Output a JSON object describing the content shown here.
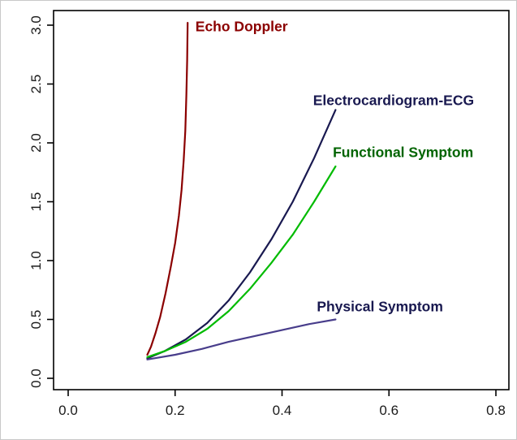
{
  "chart_data": {
    "type": "line",
    "title": "",
    "xlabel": "",
    "ylabel": "",
    "xlim": [
      0.0,
      0.8
    ],
    "ylim": [
      0.0,
      3.0
    ],
    "grid": false,
    "legend_position": "inline-annotations",
    "x_ticks": [
      0.0,
      0.2,
      0.4,
      0.6,
      0.8
    ],
    "y_ticks": [
      0.0,
      0.5,
      1.0,
      1.5,
      2.0,
      2.5,
      3.0
    ],
    "x_tick_labels": [
      "0.0",
      "0.2",
      "0.4",
      "0.6",
      "0.8"
    ],
    "y_tick_labels": [
      "0.0",
      "0.5",
      "1.0",
      "1.5",
      "2.0",
      "2.5",
      "3.0"
    ],
    "axis_color": "#000000",
    "series": [
      {
        "name": "Echo Doppler",
        "line_color": "#8B0000",
        "label_color": "#8B0000",
        "label_anchor_x": 0.238,
        "label_anchor_y": 2.95,
        "points": [
          [
            0.148,
            0.2
          ],
          [
            0.155,
            0.27
          ],
          [
            0.163,
            0.38
          ],
          [
            0.172,
            0.52
          ],
          [
            0.182,
            0.72
          ],
          [
            0.192,
            0.95
          ],
          [
            0.2,
            1.15
          ],
          [
            0.207,
            1.38
          ],
          [
            0.212,
            1.6
          ],
          [
            0.216,
            1.85
          ],
          [
            0.219,
            2.1
          ],
          [
            0.221,
            2.4
          ],
          [
            0.2225,
            2.7
          ],
          [
            0.2235,
            3.02
          ]
        ]
      },
      {
        "name": "Electrocardiogram-ECG",
        "line_color": "#191950",
        "label_color": "#191950",
        "label_anchor_x": 0.458,
        "label_anchor_y": 2.32,
        "points": [
          [
            0.148,
            0.17
          ],
          [
            0.18,
            0.23
          ],
          [
            0.22,
            0.33
          ],
          [
            0.26,
            0.47
          ],
          [
            0.3,
            0.66
          ],
          [
            0.34,
            0.9
          ],
          [
            0.38,
            1.18
          ],
          [
            0.42,
            1.5
          ],
          [
            0.46,
            1.87
          ],
          [
            0.5,
            2.28
          ]
        ]
      },
      {
        "name": "Functional Symptom",
        "line_color": "#00BB00",
        "label_color": "#006400",
        "label_anchor_x": 0.495,
        "label_anchor_y": 1.88,
        "points": [
          [
            0.148,
            0.18
          ],
          [
            0.18,
            0.23
          ],
          [
            0.22,
            0.31
          ],
          [
            0.26,
            0.42
          ],
          [
            0.3,
            0.57
          ],
          [
            0.34,
            0.76
          ],
          [
            0.38,
            0.98
          ],
          [
            0.42,
            1.22
          ],
          [
            0.46,
            1.5
          ],
          [
            0.5,
            1.8
          ]
        ]
      },
      {
        "name": "Physical Symptom",
        "line_color": "#483D8B",
        "label_color": "#191950",
        "label_anchor_x": 0.465,
        "label_anchor_y": 0.57,
        "points": [
          [
            0.148,
            0.16
          ],
          [
            0.2,
            0.2
          ],
          [
            0.25,
            0.25
          ],
          [
            0.3,
            0.31
          ],
          [
            0.35,
            0.36
          ],
          [
            0.4,
            0.41
          ],
          [
            0.45,
            0.46
          ],
          [
            0.5,
            0.5
          ]
        ]
      }
    ]
  }
}
